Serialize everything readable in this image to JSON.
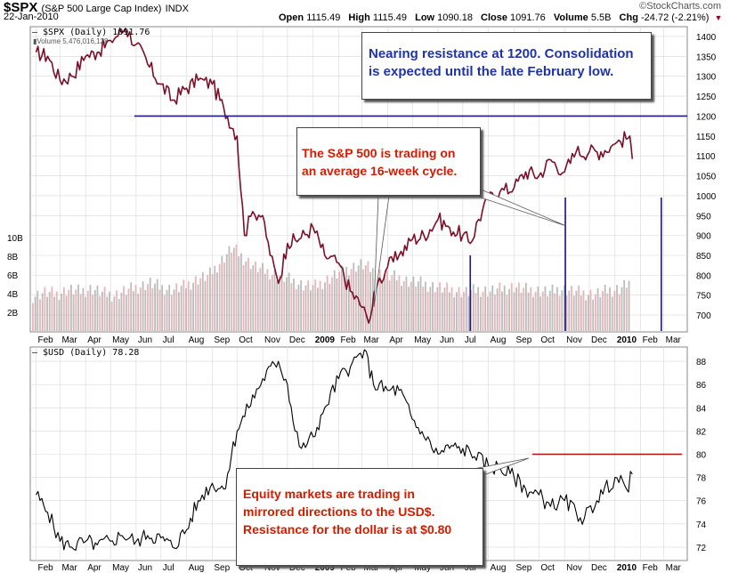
{
  "header": {
    "symbol": "$SPX",
    "name": "(S&P 500 Large Cap Index)",
    "exchange": "INDX",
    "date": "22-Jan-2010",
    "brand": "©StockCharts.com",
    "open_label": "Open",
    "open_value": "1115.49",
    "high_label": "High",
    "high_value": "1115.49",
    "low_label": "Low",
    "low_value": "1090.18",
    "close_label": "Close",
    "close_value": "1091.76",
    "volume_label": "Volume",
    "volume_value": "5.5B",
    "chg_label": "Chg",
    "chg_value": "-24.72 (-2.21%)",
    "chg_glyph": "▼"
  },
  "legend": {
    "spx": "— $SPX (Daily) 1091.76",
    "volume": "▮Volume 5,476,016,128",
    "usd": "— $USD (Daily) 78.28"
  },
  "annotations": {
    "resistance_note": [
      "Nearing resistance at 1200.  Consolidation",
      "is expected until the late February low."
    ],
    "cycle_note": [
      "The S&P 500 is trading on",
      "an average 16-week cycle."
    ],
    "usd_note": [
      "Equity markets are trading in",
      "mirrored directions to the USD$.",
      "Resistance for the dollar is at $0.80"
    ]
  },
  "colors": {
    "price_line": "#7a0f27",
    "usd_line": "#000000",
    "resistance_line": "#1a1a8a",
    "usd_resistance_line": "#b01010",
    "volume_down": "#e7a7ad",
    "volume_up": "#b0b0b0",
    "cycle_line": "#1a1a8a",
    "grid": "#d8d8d8"
  },
  "chart_data": [
    {
      "type": "line",
      "series": [
        {
          "name": "$SPX (Daily) 1091.76",
          "x": [
            "2008-02-01",
            "2008-02-15",
            "2008-03-01",
            "2008-03-15",
            "2008-04-01",
            "2008-04-15",
            "2008-05-01",
            "2008-05-19",
            "2008-06-01",
            "2008-06-15",
            "2008-07-01",
            "2008-07-15",
            "2008-08-01",
            "2008-08-15",
            "2008-09-01",
            "2008-09-15",
            "2008-10-01",
            "2008-10-10",
            "2008-10-20",
            "2008-11-01",
            "2008-11-10",
            "2008-11-20",
            "2008-12-01",
            "2008-12-15",
            "2009-01-01",
            "2009-01-15",
            "2009-02-01",
            "2009-02-15",
            "2009-03-01",
            "2009-03-09",
            "2009-03-20",
            "2009-04-01",
            "2009-04-15",
            "2009-05-01",
            "2009-05-15",
            "2009-06-01",
            "2009-06-15",
            "2009-07-01",
            "2009-07-10",
            "2009-07-20",
            "2009-08-01",
            "2009-08-15",
            "2009-09-01",
            "2009-09-15",
            "2009-10-01",
            "2009-10-15",
            "2009-11-01",
            "2009-11-15",
            "2009-12-01",
            "2009-12-15",
            "2010-01-01",
            "2010-01-19",
            "2010-01-22"
          ],
          "values": [
            1360,
            1350,
            1290,
            1300,
            1350,
            1360,
            1390,
            1420,
            1380,
            1330,
            1280,
            1240,
            1270,
            1290,
            1280,
            1220,
            1150,
            900,
            960,
            950,
            850,
            780,
            880,
            890,
            920,
            850,
            830,
            760,
            720,
            680,
            780,
            820,
            850,
            890,
            900,
            940,
            920,
            900,
            880,
            940,
            990,
            1010,
            1020,
            1060,
            1050,
            1090,
            1060,
            1110,
            1110,
            1110,
            1130,
            1150,
            1092
          ]
        }
      ],
      "y_ticks": [
        700,
        750,
        800,
        850,
        900,
        950,
        1000,
        1050,
        1100,
        1150,
        1200,
        1250,
        1300,
        1350,
        1400
      ],
      "ylim": [
        660,
        1420
      ],
      "resistance": 1200,
      "cycle_lows": [
        "2009-03-09",
        "2009-07-10",
        "2009-11-02",
        "2010-02-26"
      ],
      "x_ticks": [
        "Feb",
        "Mar",
        "Apr",
        "May",
        "Jun",
        "Jul",
        "Aug",
        "Sep",
        "Oct",
        "Nov",
        "Dec",
        "2009",
        "Feb",
        "Mar",
        "Apr",
        "May",
        "Jun",
        "Jul",
        "Aug",
        "Sep",
        "Oct",
        "Nov",
        "Dec",
        "2010",
        "Feb",
        "Mar"
      ]
    },
    {
      "type": "bar",
      "series": [
        {
          "name": "Volume 5,476,016,128"
        }
      ],
      "y_ticks": [
        "2B",
        "4B",
        "6B",
        "8B",
        "10B"
      ],
      "values_b": [
        3.8,
        4.2,
        4.0,
        4.5,
        4.3,
        4.6,
        4.1,
        3.9,
        4.4,
        4.8,
        5.2,
        4.7,
        4.5,
        4.9,
        5.6,
        6.0,
        7.5,
        9.0,
        7.8,
        6.9,
        6.4,
        6.0,
        5.5,
        5.0,
        4.8,
        5.5,
        6.2,
        6.8,
        7.2,
        6.5,
        6.0,
        5.8,
        5.4,
        5.2,
        4.9,
        4.6,
        4.4,
        4.2,
        4.5,
        4.3,
        4.6,
        4.8,
        4.5,
        4.4,
        4.2,
        4.6,
        4.3,
        4.1,
        4.0,
        4.4,
        4.6,
        5.5
      ]
    },
    {
      "type": "line",
      "series": [
        {
          "name": "$USD (Daily) 78.28",
          "x": [
            "2008-02-01",
            "2008-02-15",
            "2008-03-01",
            "2008-03-15",
            "2008-04-01",
            "2008-04-15",
            "2008-05-01",
            "2008-05-15",
            "2008-06-01",
            "2008-06-15",
            "2008-07-01",
            "2008-07-15",
            "2008-08-01",
            "2008-08-15",
            "2008-09-01",
            "2008-09-15",
            "2008-10-01",
            "2008-10-15",
            "2008-11-01",
            "2008-11-20",
            "2008-12-01",
            "2008-12-10",
            "2008-12-18",
            "2009-01-01",
            "2009-01-15",
            "2009-02-01",
            "2009-02-15",
            "2009-03-04",
            "2009-03-15",
            "2009-04-01",
            "2009-04-15",
            "2009-05-01",
            "2009-05-15",
            "2009-06-01",
            "2009-06-15",
            "2009-07-01",
            "2009-07-15",
            "2009-08-01",
            "2009-08-15",
            "2009-09-01",
            "2009-09-15",
            "2009-10-01",
            "2009-10-15",
            "2009-11-01",
            "2009-11-15",
            "2009-11-25",
            "2009-12-10",
            "2010-01-01",
            "2010-01-15",
            "2010-01-22"
          ],
          "values": [
            76.5,
            75.0,
            72.5,
            72.0,
            72.5,
            72.2,
            72.5,
            73.0,
            72.5,
            73.0,
            72.8,
            72.0,
            73.5,
            76.0,
            77.5,
            77.0,
            82.0,
            84.0,
            86.5,
            88.0,
            86.0,
            82.0,
            80.5,
            81.5,
            84.0,
            86.5,
            87.5,
            89.0,
            86.0,
            85.5,
            85.5,
            83.0,
            81.5,
            80.0,
            80.5,
            80.5,
            79.8,
            79.0,
            78.8,
            78.0,
            77.0,
            76.5,
            75.5,
            76.0,
            75.0,
            74.5,
            76.0,
            78.0,
            77.0,
            78.28
          ]
        }
      ],
      "y_ticks": [
        72,
        74,
        76,
        78,
        80,
        82,
        84,
        86,
        88
      ],
      "ylim": [
        71,
        89
      ],
      "resistance": 80
    }
  ]
}
